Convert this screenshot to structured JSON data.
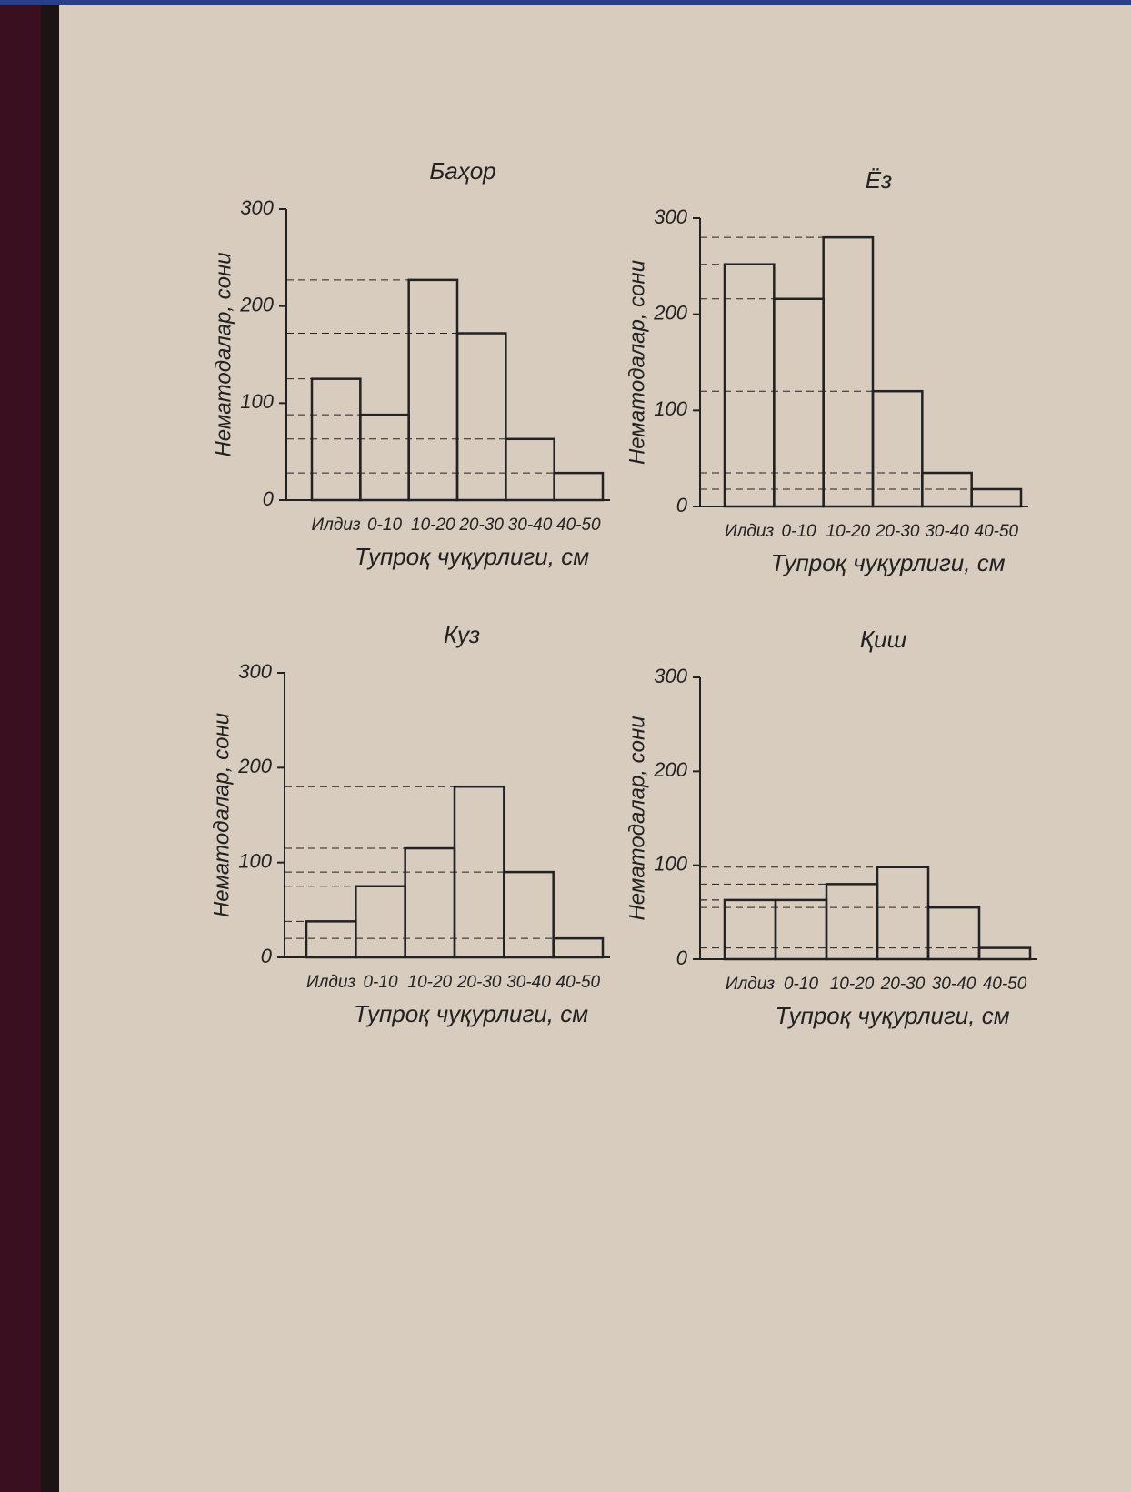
{
  "chart_data": [
    {
      "type": "bar",
      "title": "Баҳор",
      "x_label": "Тупроқ чуқурлиги, см",
      "y_label": "Нематодалар, сони",
      "categories": [
        "Илдиз",
        "0-10",
        "10-20",
        "20-30",
        "30-40",
        "40-50"
      ],
      "values": [
        125,
        88,
        227,
        172,
        63,
        28
      ],
      "color": "#222222",
      "ylim": [
        0,
        300
      ],
      "yticks": [
        0,
        100,
        200,
        300
      ],
      "dashed_guides": true
    },
    {
      "type": "bar",
      "title": "Ёз",
      "x_label": "Тупроқ чуқурлиги, см",
      "y_label": "Нематодалар, сони",
      "categories": [
        "Илдиз",
        "0-10",
        "10-20",
        "20-30",
        "30-40",
        "40-50"
      ],
      "values": [
        252,
        216,
        280,
        120,
        35,
        18
      ],
      "color": "#222222",
      "ylim": [
        0,
        300
      ],
      "yticks": [
        0,
        100,
        200,
        300
      ],
      "dashed_guides": true
    },
    {
      "type": "bar",
      "title": "Куз",
      "x_label": "Тупроқ чуқурлиги, см",
      "y_label": "Нематодалар, сони",
      "categories": [
        "Илдиз",
        "0-10",
        "10-20",
        "20-30",
        "30-40",
        "40-50"
      ],
      "values": [
        38,
        75,
        115,
        180,
        90,
        20
      ],
      "color": "#222222",
      "ylim": [
        0,
        300
      ],
      "yticks": [
        0,
        100,
        200,
        300
      ],
      "dashed_guides": true
    },
    {
      "type": "bar",
      "title": "Қиш",
      "x_label": "Тупроқ чуқурлиги, см",
      "y_label": "Нематодалар, сони",
      "categories": [
        "Илдиз",
        "0-10",
        "10-20",
        "20-30",
        "30-40",
        "40-50"
      ],
      "values": [
        63,
        63,
        80,
        98,
        55,
        12
      ],
      "color": "#222222",
      "ylim": [
        0,
        300
      ],
      "yticks": [
        0,
        100,
        200,
        300
      ],
      "dashed_guides": true
    }
  ]
}
